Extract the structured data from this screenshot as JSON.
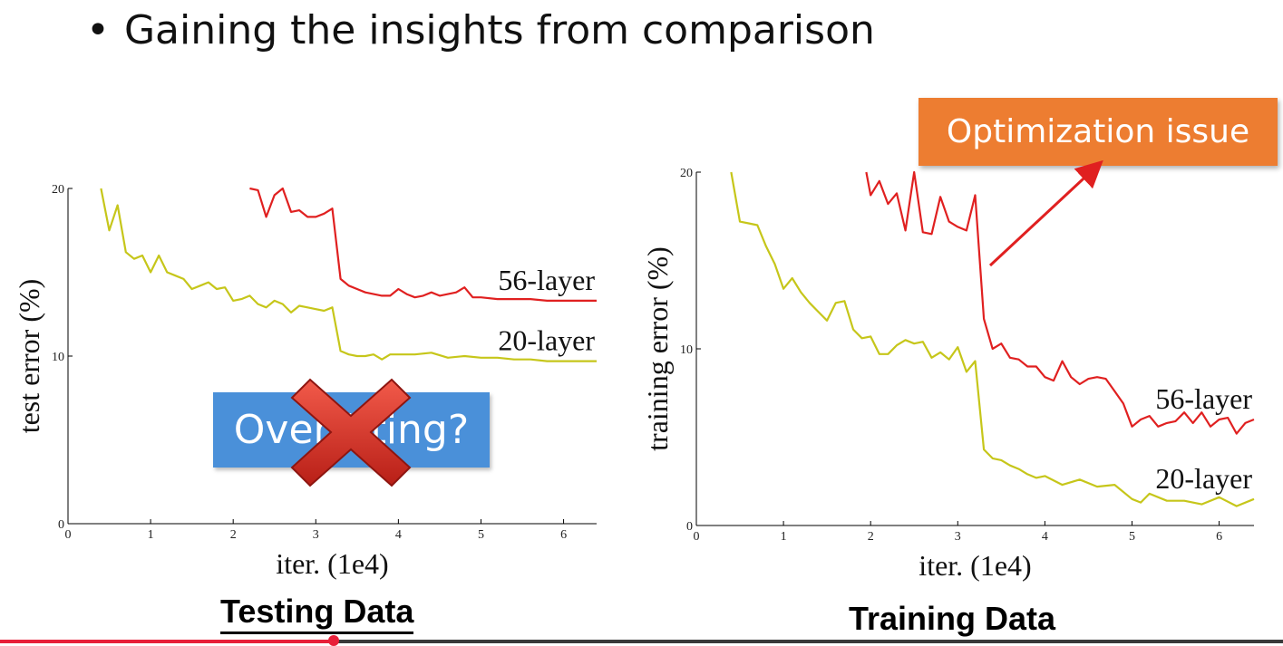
{
  "slide": {
    "bullet": "•",
    "title": "Gaining the insights from comparison"
  },
  "captions": {
    "left": "Testing Data",
    "right": "Training Data"
  },
  "annotations": {
    "overfitting_box": "Overfitting?",
    "callout": "Optimization issue",
    "colors": {
      "box": "#4a90d9",
      "cross": "#d9342b",
      "callout": "#ed7d31",
      "arrow": "#e02020"
    }
  },
  "video_progress": {
    "fraction": 0.26,
    "color": "#e8203a"
  },
  "chart_data": [
    {
      "type": "line",
      "xlabel": "iter. (1e4)",
      "ylabel": "test error (%)",
      "xlim": [
        0,
        6.4
      ],
      "ylim": [
        0,
        20
      ],
      "xticks": [
        "0",
        "1",
        "2",
        "3",
        "4",
        "5",
        "6"
      ],
      "yticks": [
        "0",
        "10",
        "20"
      ],
      "grid": false,
      "legend": "inline labels at right",
      "series": [
        {
          "name": "56-layer",
          "color": "#e02020",
          "x": [
            2.2,
            2.3,
            2.4,
            2.5,
            2.6,
            2.7,
            2.8,
            2.9,
            3.0,
            3.1,
            3.2,
            3.3,
            3.4,
            3.5,
            3.6,
            3.7,
            3.8,
            3.9,
            4.0,
            4.1,
            4.2,
            4.3,
            4.4,
            4.5,
            4.6,
            4.7,
            4.8,
            4.9,
            5.0,
            5.2,
            5.4,
            5.6,
            5.8,
            6.0,
            6.2,
            6.4
          ],
          "y": [
            20,
            19.9,
            18.3,
            19.6,
            20,
            18.6,
            18.7,
            18.3,
            18.3,
            18.5,
            18.8,
            14.6,
            14.2,
            14,
            13.8,
            13.7,
            13.6,
            13.6,
            14,
            13.7,
            13.5,
            13.6,
            13.8,
            13.6,
            13.7,
            13.8,
            14.1,
            13.5,
            13.5,
            13.4,
            13.4,
            13.4,
            13.3,
            13.3,
            13.3,
            13.3
          ]
        },
        {
          "name": "20-layer",
          "color": "#c6c61a",
          "x": [
            0.4,
            0.5,
            0.6,
            0.7,
            0.8,
            0.9,
            1.0,
            1.1,
            1.2,
            1.3,
            1.4,
            1.5,
            1.6,
            1.7,
            1.8,
            1.9,
            2.0,
            2.1,
            2.2,
            2.3,
            2.4,
            2.5,
            2.6,
            2.7,
            2.8,
            2.9,
            3.0,
            3.1,
            3.2,
            3.3,
            3.4,
            3.5,
            3.6,
            3.7,
            3.8,
            3.9,
            4.0,
            4.2,
            4.4,
            4.6,
            4.8,
            5.0,
            5.2,
            5.4,
            5.6,
            5.8,
            6.0,
            6.2,
            6.4
          ],
          "y": [
            20,
            17.5,
            19,
            16.2,
            15.8,
            16,
            15,
            16,
            15,
            14.8,
            14.6,
            14,
            14.2,
            14.4,
            14,
            14.1,
            13.3,
            13.4,
            13.6,
            13.1,
            12.9,
            13.3,
            13.1,
            12.6,
            13,
            12.9,
            12.8,
            12.7,
            12.9,
            10.3,
            10.1,
            10,
            10,
            10.1,
            9.8,
            10.1,
            10.1,
            10.1,
            10.2,
            9.9,
            10,
            9.9,
            9.9,
            9.8,
            9.8,
            9.7,
            9.7,
            9.7,
            9.7
          ]
        }
      ]
    },
    {
      "type": "line",
      "xlabel": "iter. (1e4)",
      "ylabel": "training error (%)",
      "xlim": [
        0,
        6.4
      ],
      "ylim": [
        0,
        20
      ],
      "xticks": [
        "0",
        "1",
        "2",
        "3",
        "4",
        "5",
        "6"
      ],
      "yticks": [
        "0",
        "10",
        "20"
      ],
      "grid": false,
      "legend": "inline labels at right",
      "series": [
        {
          "name": "56-layer",
          "color": "#e02020",
          "x": [
            1.95,
            2.0,
            2.1,
            2.2,
            2.3,
            2.4,
            2.5,
            2.6,
            2.7,
            2.8,
            2.9,
            3.0,
            3.1,
            3.2,
            3.3,
            3.4,
            3.5,
            3.6,
            3.7,
            3.8,
            3.9,
            4.0,
            4.1,
            4.2,
            4.3,
            4.4,
            4.5,
            4.6,
            4.7,
            4.8,
            4.9,
            5.0,
            5.1,
            5.2,
            5.3,
            5.4,
            5.5,
            5.6,
            5.7,
            5.8,
            5.9,
            6.0,
            6.1,
            6.2,
            6.3,
            6.4
          ],
          "y": [
            20,
            18.7,
            19.5,
            18.2,
            18.8,
            16.7,
            20,
            16.6,
            16.5,
            18.6,
            17.2,
            16.9,
            16.7,
            18.7,
            11.7,
            10,
            10.3,
            9.5,
            9.4,
            9,
            9,
            8.4,
            8.2,
            9.3,
            8.4,
            8,
            8.3,
            8.4,
            8.3,
            7.6,
            6.9,
            5.6,
            6,
            6.2,
            5.6,
            5.8,
            5.9,
            6.4,
            5.8,
            6.4,
            5.6,
            6,
            6.1,
            5.2,
            5.8,
            6
          ]
        },
        {
          "name": "20-layer",
          "color": "#c6c61a",
          "x": [
            0.4,
            0.5,
            0.6,
            0.7,
            0.8,
            0.9,
            1.0,
            1.1,
            1.2,
            1.3,
            1.4,
            1.5,
            1.6,
            1.7,
            1.8,
            1.9,
            2.0,
            2.1,
            2.2,
            2.3,
            2.4,
            2.5,
            2.6,
            2.7,
            2.8,
            2.9,
            3.0,
            3.1,
            3.2,
            3.3,
            3.4,
            3.5,
            3.6,
            3.7,
            3.8,
            3.9,
            4.0,
            4.2,
            4.4,
            4.6,
            4.8,
            5.0,
            5.1,
            5.2,
            5.4,
            5.6,
            5.8,
            6.0,
            6.2,
            6.4
          ],
          "y": [
            20,
            17.2,
            17.1,
            17,
            15.8,
            14.8,
            13.4,
            14,
            13.2,
            12.6,
            12.1,
            11.6,
            12.6,
            12.7,
            11.1,
            10.6,
            10.7,
            9.7,
            9.7,
            10.2,
            10.5,
            10.3,
            10.4,
            9.5,
            9.8,
            9.4,
            10.1,
            8.7,
            9.3,
            4.3,
            3.8,
            3.7,
            3.4,
            3.2,
            2.9,
            2.7,
            2.8,
            2.3,
            2.6,
            2.2,
            2.3,
            1.5,
            1.3,
            1.8,
            1.4,
            1.4,
            1.2,
            1.6,
            1.1,
            1.5
          ]
        }
      ]
    }
  ]
}
